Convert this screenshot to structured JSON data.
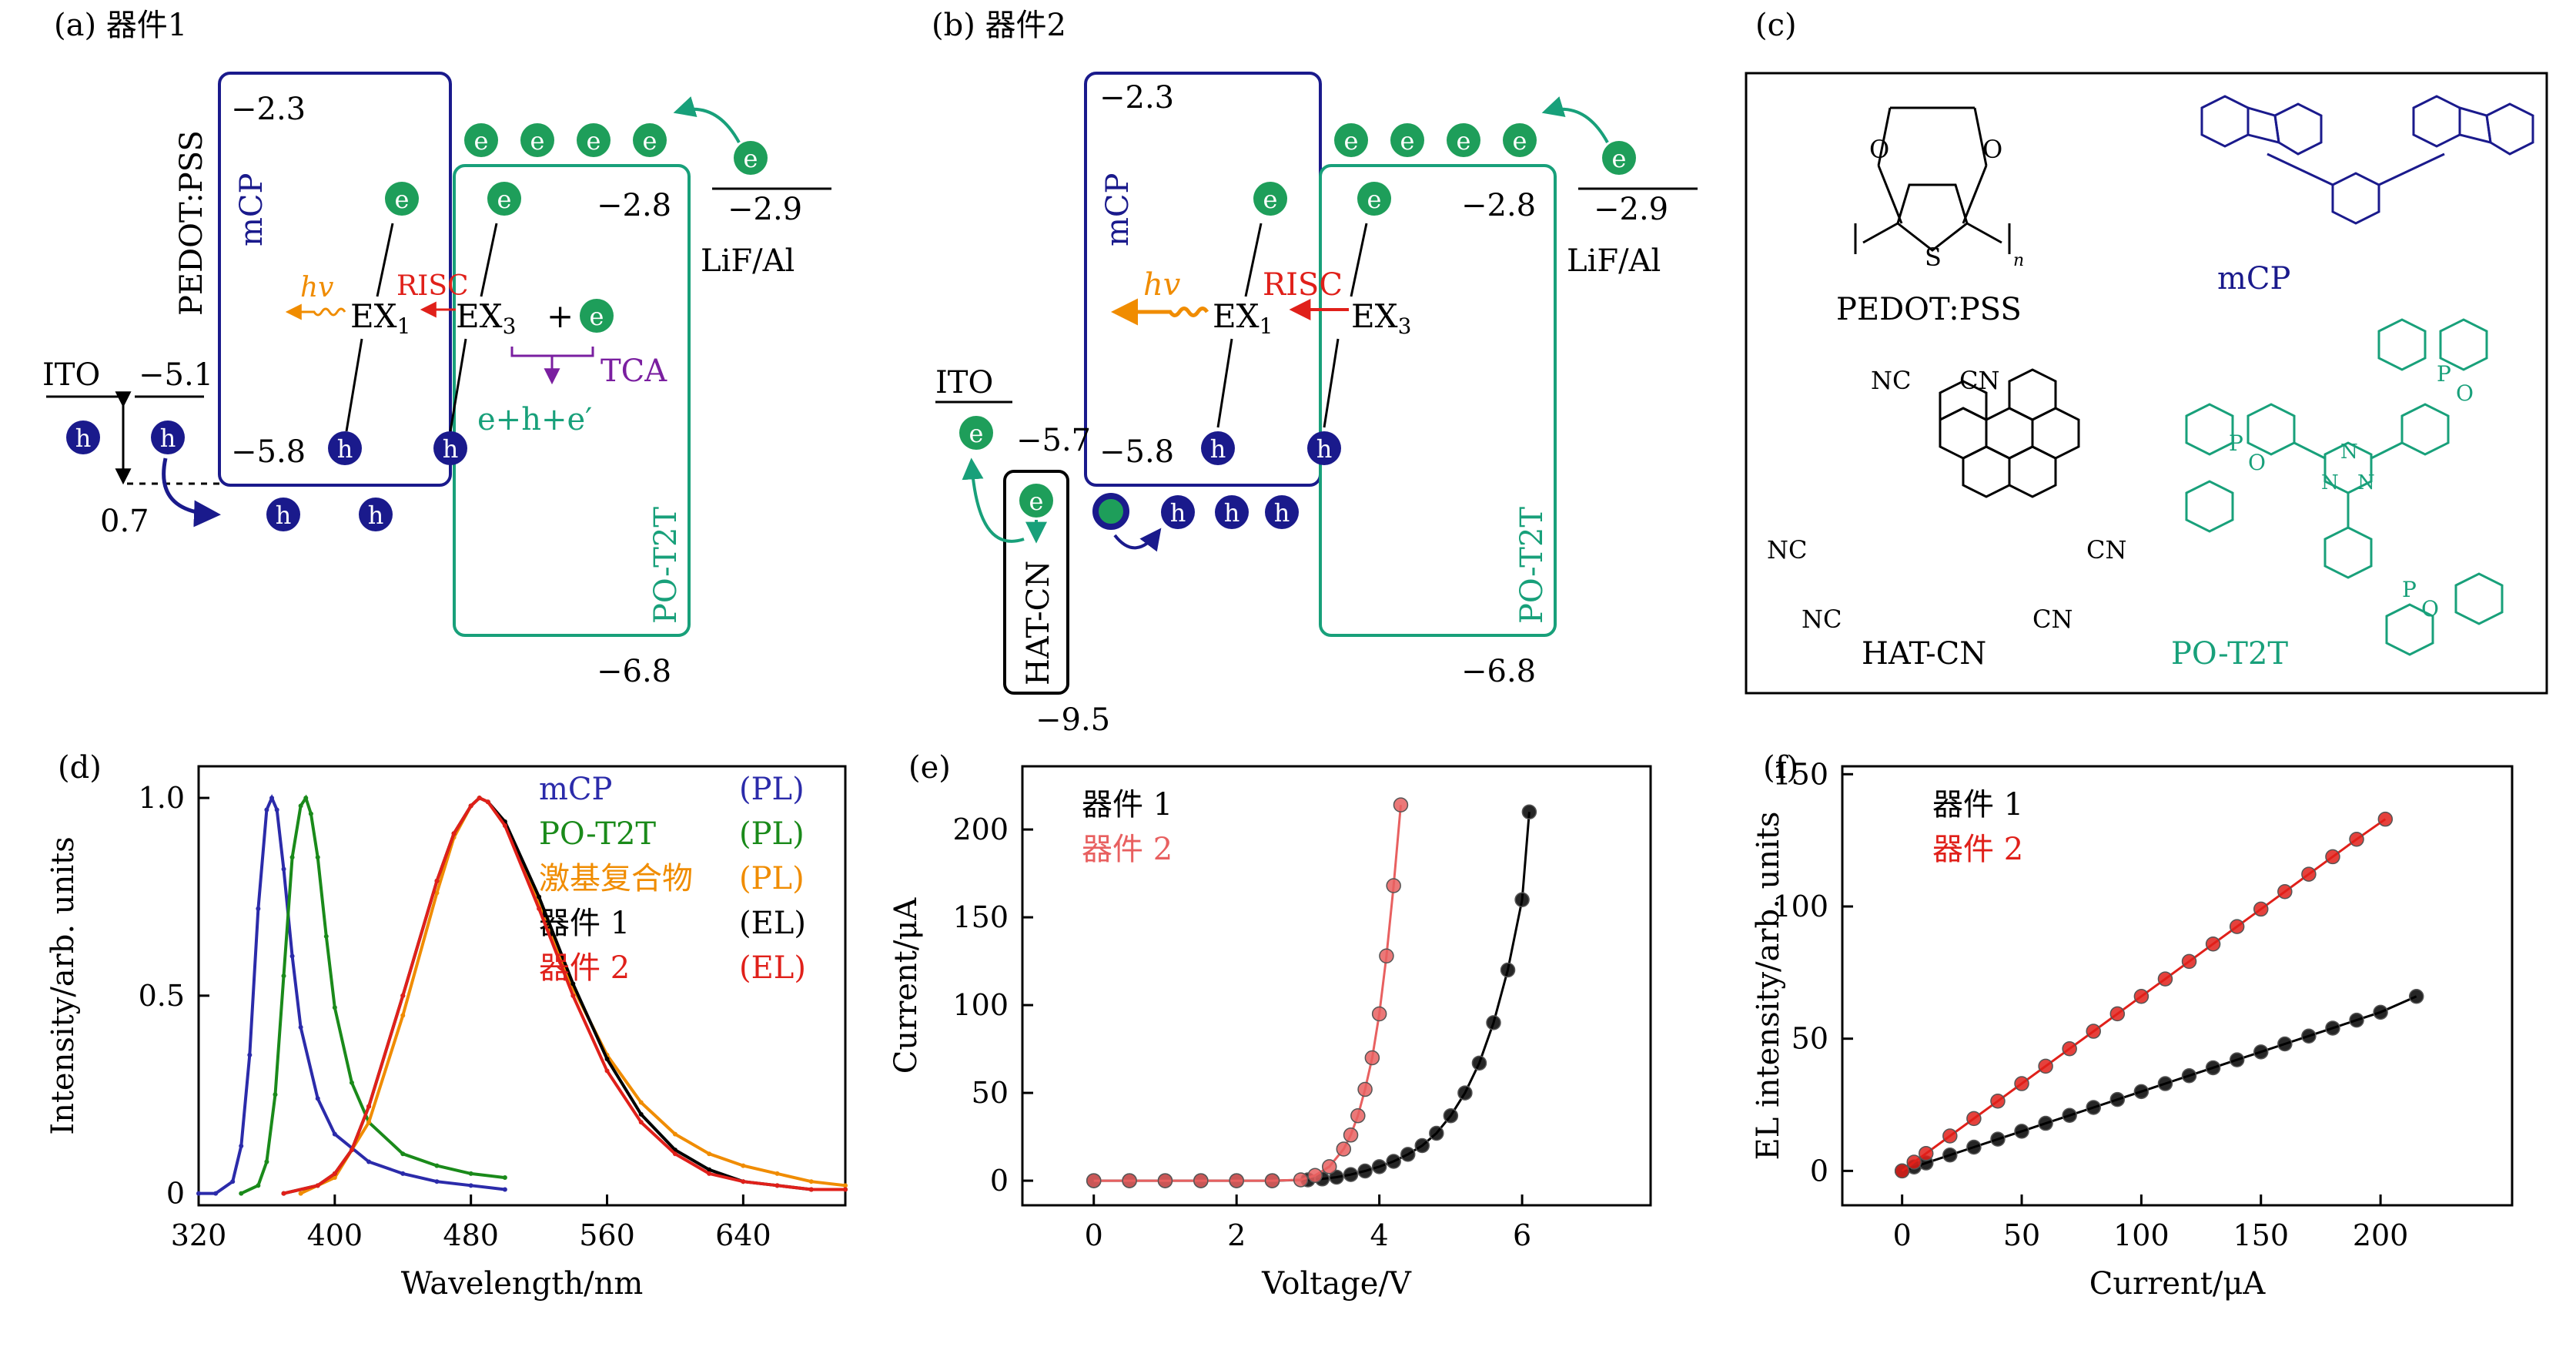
{
  "colors": {
    "black": "#000000",
    "navy": "#1a1a8c",
    "green": "#1e9e5a",
    "teal": "#18a07a",
    "orange": "#f08c00",
    "red": "#e0201a",
    "purple": "#7a1fa0",
    "pink": "#e86060",
    "blueline": "#2b2baa",
    "greenline": "#1a8a1a"
  },
  "panel_a": {
    "label": "(a) 器件1",
    "pedot": "PEDOT:PSS",
    "mcp": "mCP",
    "lumo_mcp": "−2.3",
    "lumo_po": "−2.8",
    "lumo_lif": "−2.9",
    "lif": "LiF/Al",
    "ito": "ITO",
    "ito_wf": "−5.1",
    "homo_mcp": "−5.8",
    "gap": "0.7",
    "homo_po": "−6.8",
    "po": "PO-T2T",
    "hv": "hv",
    "risc": "RISC",
    "ex1": "EX",
    "ex1_sub": "1",
    "ex3": "EX",
    "ex3_sub": "3",
    "plus": "+",
    "tca": "TCA",
    "products": "e+h+e′",
    "e": "e",
    "h": "h"
  },
  "panel_b": {
    "label": "(b) 器件2",
    "mcp": "mCP",
    "lumo_mcp": "−2.3",
    "lumo_po": "−2.8",
    "lumo_lif": "−2.9",
    "lif": "LiF/Al",
    "ito": "ITO",
    "ito_wf": "−5.7",
    "homo_mcp": "−5.8",
    "hatcn": "HAT-CN",
    "hat_low": "−9.5",
    "homo_po": "−6.8",
    "po": "PO-T2T",
    "hv": "hv",
    "risc": "RISC",
    "ex1": "EX",
    "ex1_sub": "1",
    "ex3": "EX",
    "ex3_sub": "3",
    "e": "e",
    "h": "h"
  },
  "panel_c": {
    "label": "(c)",
    "pedot": "PEDOT:PSS",
    "mcp": "mCP",
    "hatcn": "HAT-CN",
    "po": "PO-T2T",
    "nc": "NC",
    "cn": "CN",
    "n": "N",
    "o": "O",
    "s": "S",
    "p": "P",
    "n_sub": "n"
  },
  "chart_data": [
    {
      "id": "d",
      "label": "(d)",
      "type": "line",
      "xlabel": "Wavelength/nm",
      "ylabel": "Intensity/arb. units",
      "xlim": [
        320,
        700
      ],
      "ylim": [
        -0.03,
        1.08
      ],
      "xticks": [
        320,
        400,
        480,
        560,
        640
      ],
      "yticks": [
        0,
        0.5,
        1.0
      ],
      "ytick_labels": [
        "0",
        "0.5",
        "1.0"
      ],
      "legend": "top-right",
      "series": [
        {
          "name": "mCP",
          "tag": "(PL)",
          "color": "#2b2baa",
          "x": [
            320,
            330,
            340,
            345,
            350,
            355,
            360,
            363,
            366,
            370,
            375,
            380,
            390,
            400,
            420,
            440,
            460,
            480,
            500
          ],
          "y": [
            0,
            0,
            0.03,
            0.12,
            0.35,
            0.72,
            0.97,
            1.0,
            0.97,
            0.82,
            0.6,
            0.42,
            0.24,
            0.15,
            0.08,
            0.05,
            0.03,
            0.02,
            0.01
          ]
        },
        {
          "name": "PO-T2T",
          "tag": "(PL)",
          "color": "#1a8a1a",
          "x": [
            345,
            355,
            360,
            365,
            370,
            375,
            380,
            383,
            386,
            390,
            395,
            400,
            410,
            420,
            440,
            460,
            480,
            500
          ],
          "y": [
            0,
            0.02,
            0.08,
            0.25,
            0.55,
            0.85,
            0.98,
            1.0,
            0.96,
            0.85,
            0.65,
            0.47,
            0.28,
            0.18,
            0.1,
            0.07,
            0.05,
            0.04
          ]
        },
        {
          "name": "激基复合物",
          "tag": "(PL)",
          "color": "#f08c00",
          "x": [
            380,
            400,
            420,
            440,
            460,
            470,
            480,
            485,
            490,
            500,
            520,
            540,
            560,
            580,
            600,
            620,
            640,
            660,
            680,
            700
          ],
          "y": [
            0,
            0.04,
            0.18,
            0.45,
            0.76,
            0.9,
            0.98,
            1.0,
            0.99,
            0.93,
            0.74,
            0.52,
            0.35,
            0.23,
            0.15,
            0.1,
            0.07,
            0.05,
            0.03,
            0.02
          ]
        },
        {
          "name": "器件 1",
          "tag": "(EL)",
          "color": "#000000",
          "x": [
            370,
            390,
            400,
            410,
            420,
            440,
            460,
            470,
            480,
            485,
            490,
            500,
            520,
            540,
            560,
            580,
            600,
            620,
            640,
            660,
            680,
            700
          ],
          "y": [
            0,
            0.02,
            0.05,
            0.11,
            0.22,
            0.5,
            0.79,
            0.91,
            0.98,
            1.0,
            0.99,
            0.94,
            0.75,
            0.53,
            0.34,
            0.2,
            0.11,
            0.06,
            0.03,
            0.02,
            0.01,
            0.01
          ]
        },
        {
          "name": "器件 2",
          "tag": "(EL)",
          "color": "#e0201a",
          "x": [
            370,
            390,
            400,
            410,
            420,
            440,
            460,
            470,
            480,
            485,
            490,
            500,
            520,
            540,
            560,
            580,
            600,
            620,
            640,
            660,
            680,
            700
          ],
          "y": [
            0,
            0.02,
            0.05,
            0.11,
            0.22,
            0.5,
            0.79,
            0.91,
            0.98,
            1.0,
            0.99,
            0.93,
            0.72,
            0.5,
            0.31,
            0.18,
            0.1,
            0.05,
            0.03,
            0.02,
            0.01,
            0.01
          ]
        }
      ]
    },
    {
      "id": "e",
      "label": "(e)",
      "type": "line",
      "xlabel": "Voltage/V",
      "ylabel": "Current/μA",
      "xlim": [
        -1,
        7.8
      ],
      "ylim": [
        -14,
        236
      ],
      "xticks": [
        0,
        2,
        4,
        6
      ],
      "yticks": [
        0,
        50,
        100,
        150,
        200
      ],
      "legend": "top-left",
      "series": [
        {
          "name": "器件 1",
          "color": "#000000",
          "x": [
            0,
            0.5,
            1,
            1.5,
            2,
            2.5,
            3,
            3.2,
            3.4,
            3.6,
            3.8,
            4,
            4.2,
            4.4,
            4.6,
            4.8,
            5,
            5.2,
            5.4,
            5.6,
            5.8,
            6,
            6.1
          ],
          "y": [
            0,
            0,
            0,
            0,
            0,
            0,
            0.5,
            1,
            2,
            3.5,
            5.5,
            8,
            11,
            15,
            20,
            27,
            37,
            50,
            67,
            90,
            120,
            160,
            210
          ]
        },
        {
          "name": "器件 2",
          "color": "#e86060",
          "x": [
            0,
            0.5,
            1,
            1.5,
            2,
            2.5,
            2.9,
            3.1,
            3.3,
            3.5,
            3.6,
            3.7,
            3.8,
            3.9,
            4,
            4.1,
            4.2,
            4.3
          ],
          "y": [
            0,
            0,
            0,
            0,
            0,
            0,
            0.5,
            3,
            8,
            18,
            26,
            37,
            52,
            70,
            95,
            128,
            168,
            214
          ]
        }
      ]
    },
    {
      "id": "f",
      "label": "(f)",
      "type": "line",
      "xlabel": "Current/μA",
      "ylabel": "EL intensity/arb. units",
      "xlim": [
        -25,
        255
      ],
      "ylim": [
        -13,
        153
      ],
      "xticks": [
        0,
        50,
        100,
        150,
        200
      ],
      "yticks": [
        0,
        50,
        100,
        150
      ],
      "legend": "top-left",
      "series": [
        {
          "name": "器件 1",
          "color": "#000000",
          "x": [
            0,
            5,
            10,
            20,
            30,
            40,
            50,
            60,
            70,
            80,
            90,
            100,
            110,
            120,
            130,
            140,
            150,
            160,
            170,
            180,
            190,
            200,
            215
          ],
          "y": [
            0,
            1.5,
            3,
            6,
            9,
            12,
            15,
            18,
            21,
            24,
            27,
            30,
            33,
            36,
            39,
            42,
            45,
            48,
            51,
            54,
            57,
            60,
            66
          ]
        },
        {
          "name": "器件 2",
          "color": "#e0201a",
          "x": [
            0,
            5,
            10,
            20,
            30,
            40,
            50,
            60,
            70,
            80,
            90,
            100,
            110,
            120,
            130,
            140,
            150,
            160,
            170,
            180,
            190,
            202
          ],
          "y": [
            0,
            3.3,
            6.6,
            13.2,
            19.8,
            26.4,
            33,
            39.6,
            46.2,
            52.8,
            59.4,
            66,
            72.6,
            79.2,
            85.8,
            92.4,
            99,
            105.6,
            112.2,
            118.8,
            125.4,
            133
          ]
        }
      ]
    }
  ]
}
